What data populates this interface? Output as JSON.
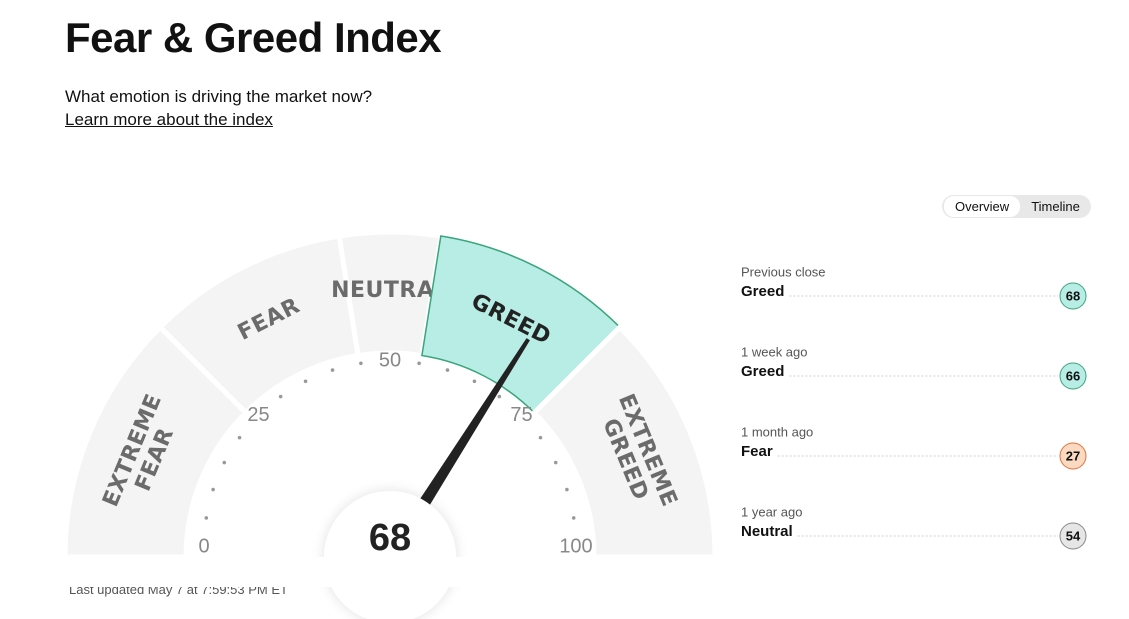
{
  "header": {
    "title": "Fear & Greed Index",
    "subtitle": "What emotion is driving the market now?",
    "link": "Learn more about the index"
  },
  "toggle": {
    "options": [
      "Overview",
      "Timeline"
    ]
  },
  "gauge": {
    "value": 68,
    "range": [
      0,
      100
    ],
    "ticks": [
      0,
      25,
      50,
      75,
      100
    ],
    "segments": [
      {
        "label": [
          "EXTREME",
          "FEAR"
        ],
        "range": [
          0,
          25
        ]
      },
      {
        "label": [
          "FEAR"
        ],
        "range": [
          25,
          45
        ]
      },
      {
        "label": [
          "NEUTRAL"
        ],
        "range": [
          45,
          55
        ]
      },
      {
        "label": [
          "GREED"
        ],
        "range": [
          55,
          75
        ]
      },
      {
        "label": [
          "EXTREME",
          "GREED"
        ],
        "range": [
          75,
          100
        ]
      }
    ],
    "segment_color": "#f4f4f4",
    "highlight_color": "#b8ede6",
    "highlight_stroke": "#3aa57a"
  },
  "history": [
    {
      "period": "Previous close",
      "rating": "Greed",
      "value": 68,
      "color": "#b8ede6",
      "stroke": "#3aa57a"
    },
    {
      "period": "1 week ago",
      "rating": "Greed",
      "value": 66,
      "color": "#b8ede6",
      "stroke": "#3aa57a"
    },
    {
      "period": "1 month ago",
      "rating": "Fear",
      "value": 27,
      "color": "#fcd9c1",
      "stroke": "#e3713c"
    },
    {
      "period": "1 year ago",
      "rating": "Neutral",
      "value": 54,
      "color": "#e6e6e6",
      "stroke": "#888888"
    }
  ],
  "footer": "Last updated May 7 at 7:59:53 PM ET"
}
